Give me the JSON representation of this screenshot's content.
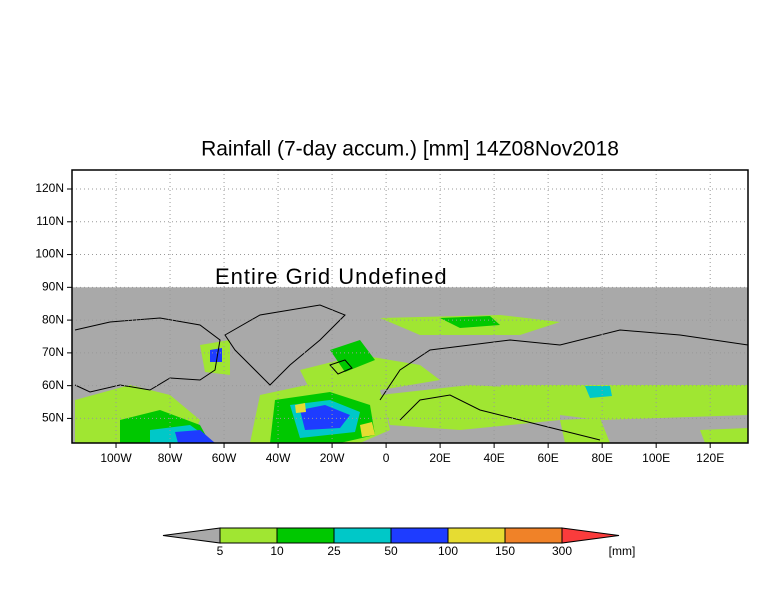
{
  "map": {
    "title": "Rainfall (7-day accum.) [mm] 14Z08Nov2018",
    "note": "Entire Grid Undefined",
    "xlim": [
      -116.3,
      134
    ],
    "ylim": [
      42.5,
      125.8
    ],
    "xticks": [
      {
        "value": -100,
        "label": "100W"
      },
      {
        "value": -80,
        "label": "80W"
      },
      {
        "value": -60,
        "label": "60W"
      },
      {
        "value": -40,
        "label": "40W"
      },
      {
        "value": -20,
        "label": "20W"
      },
      0,
      {
        "value": 20,
        "label": "20E"
      },
      {
        "value": 40,
        "label": "40E"
      },
      {
        "value": 60,
        "label": "60E"
      },
      {
        "value": 80,
        "label": "80E"
      },
      {
        "value": 100,
        "label": "100E"
      },
      {
        "value": 120,
        "label": "120E"
      }
    ],
    "yticks": [
      {
        "value": 120,
        "label": "120N"
      },
      {
        "value": 110,
        "label": "110N"
      },
      {
        "value": 100,
        "label": "100N"
      },
      {
        "value": 90,
        "label": "90N"
      },
      {
        "value": 80,
        "label": "80N"
      },
      {
        "value": 70,
        "label": "70N"
      },
      {
        "value": 60,
        "label": "60N"
      },
      {
        "value": 50,
        "label": "50N"
      }
    ],
    "grid": true,
    "colorbar": {
      "levels": [
        5,
        10,
        25,
        50,
        100,
        150,
        300
      ],
      "colors": [
        "#a9a9a9",
        "#a0e632",
        "#00c800",
        "#00c8c8",
        "#1e3cff",
        "#e6dc32",
        "#f08228",
        "#fa3c3c"
      ],
      "unit": "[mm]"
    }
  }
}
